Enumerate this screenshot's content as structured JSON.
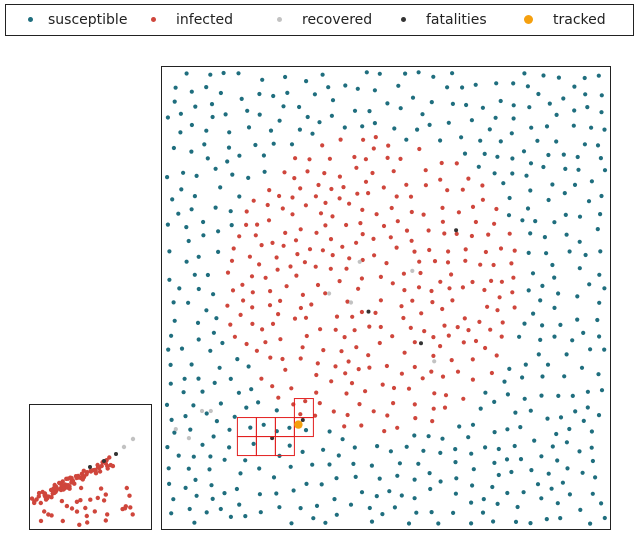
{
  "legend": {
    "items": [
      {
        "key": "susceptible",
        "label": "susceptible",
        "color": "#1f6e7e"
      },
      {
        "key": "infected",
        "label": "infected",
        "color": "#cf463c"
      },
      {
        "key": "recovered",
        "label": "recovered",
        "color": "#c2c2c2"
      },
      {
        "key": "fatalities",
        "label": "fatalities",
        "color": "#333333"
      },
      {
        "key": "tracked",
        "label": "tracked",
        "color": "#f5a00f"
      }
    ]
  },
  "chart_data": [
    {
      "type": "scatter",
      "title": "",
      "xlabel": "",
      "ylabel": "",
      "xlim": [
        0,
        1
      ],
      "ylim": [
        0,
        1
      ],
      "grid": false,
      "legend_placement": "top",
      "population": {
        "susceptible": 460,
        "infected": 295,
        "recovered": 9,
        "fatalities": 5,
        "tracked": 1
      },
      "outbreak_center": [
        0.47,
        0.53
      ],
      "tracked_point": [
        0.3,
        0.22
      ],
      "tracked_grid": {
        "cols": 4,
        "rows": 3,
        "color": "#e21e1e"
      }
    },
    {
      "type": "scatter",
      "title": "",
      "xlabel": "",
      "ylabel": "",
      "grid": false,
      "series": [
        {
          "name": "infected",
          "color": "#cf463c",
          "count": 120
        },
        {
          "name": "recovered",
          "color": "#c2c2c2",
          "count": 2
        },
        {
          "name": "fatalities",
          "color": "#333333",
          "count": 3
        }
      ]
    }
  ]
}
